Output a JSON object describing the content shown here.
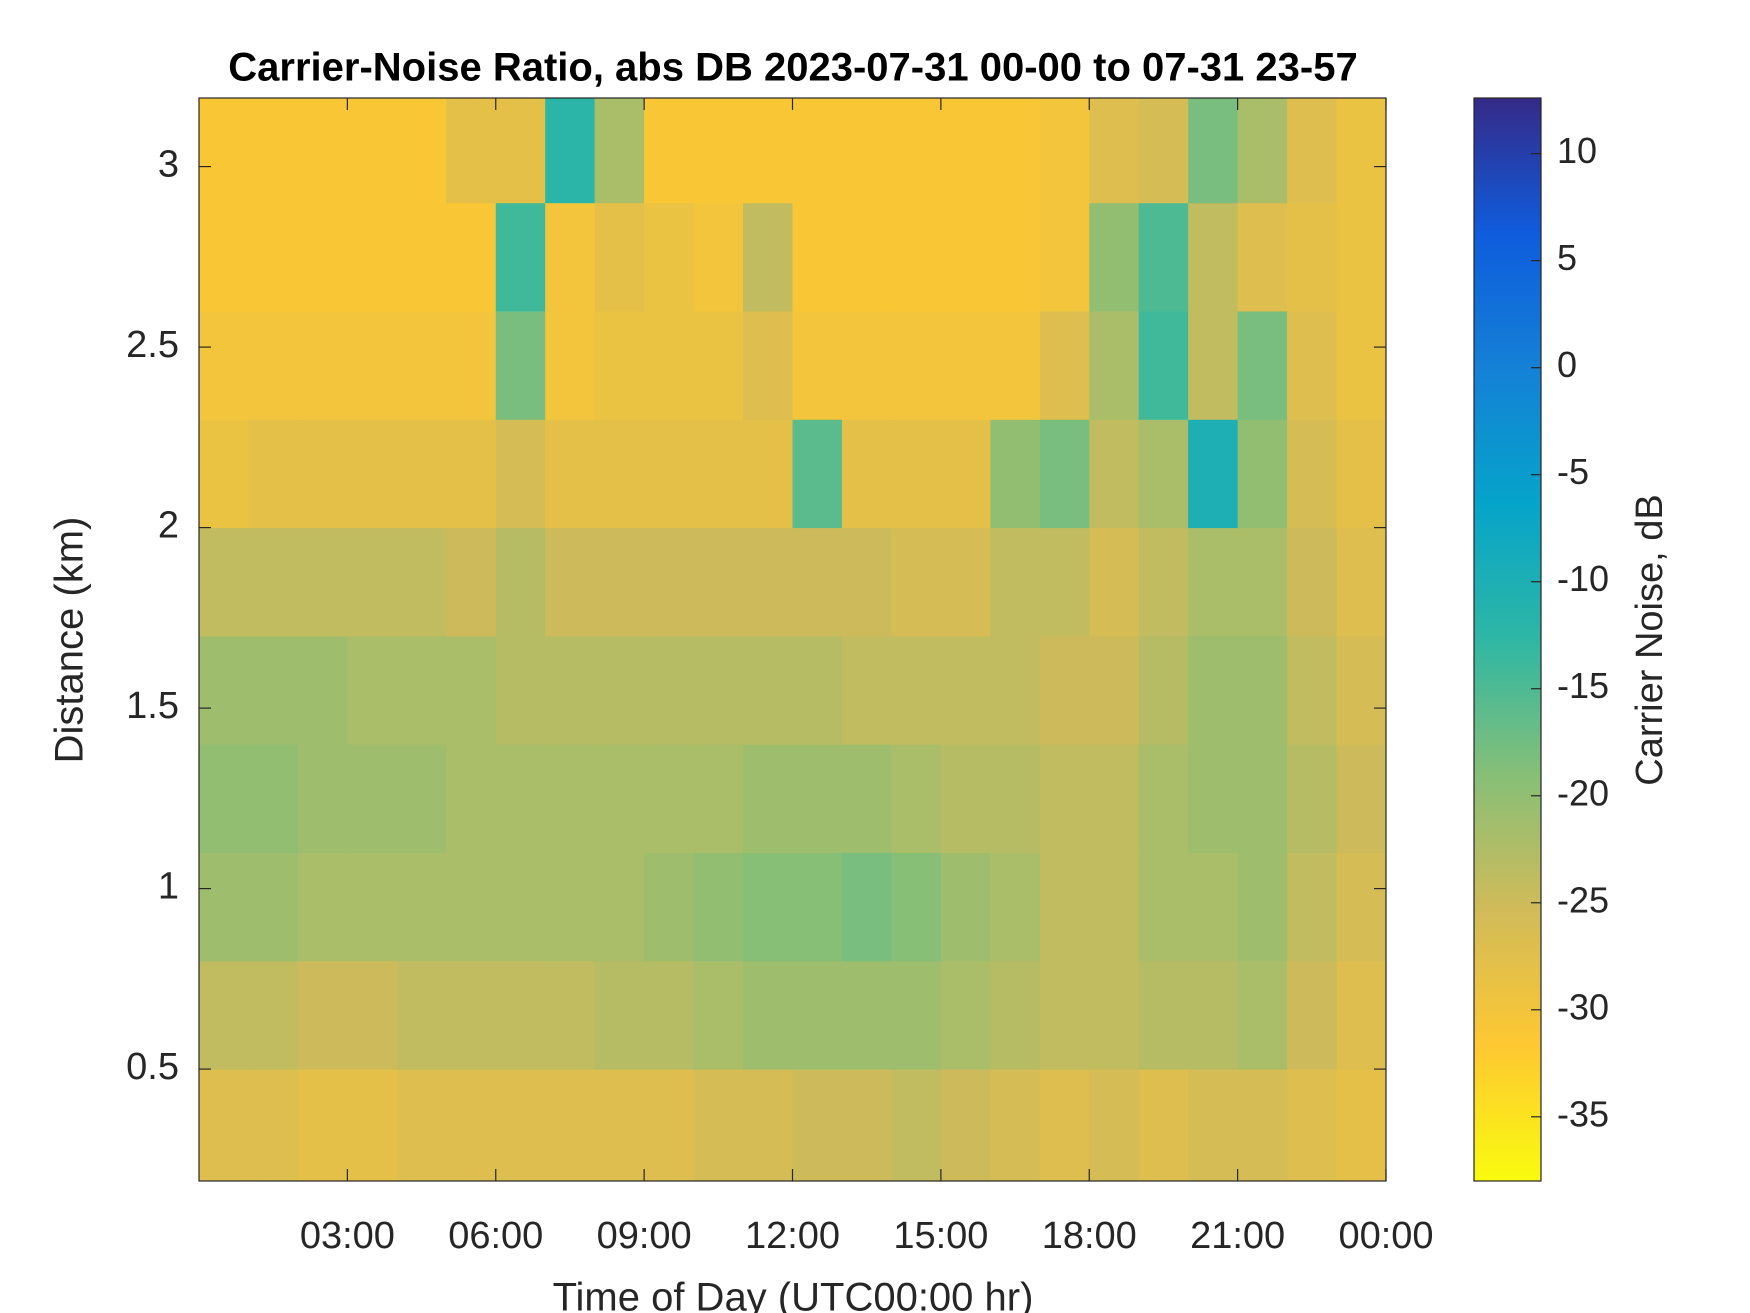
{
  "chart_data": {
    "type": "heatmap",
    "title": "Carrier-Noise Ratio, abs DB 2023-07-31 00-00 to 07-31 23-57",
    "x_label": "Time of Day (UTC00:00 hr)",
    "y_label": "Distance (km)",
    "colorbar_label": "Carrier Noise, dB",
    "xlim": [
      0,
      24
    ],
    "ylim": [
      0.19,
      3.19
    ],
    "xticks": [
      {
        "value": 3,
        "label": "03:00"
      },
      {
        "value": 6,
        "label": "06:00"
      },
      {
        "value": 9,
        "label": "09:00"
      },
      {
        "value": 12,
        "label": "12:00"
      },
      {
        "value": 15,
        "label": "15:00"
      },
      {
        "value": 18,
        "label": "18:00"
      },
      {
        "value": 21,
        "label": "21:00"
      },
      {
        "value": 24,
        "label": "00:00"
      }
    ],
    "yticks": [
      0.5,
      1,
      1.5,
      2,
      2.5,
      3
    ],
    "clim": [
      -38,
      12.6
    ],
    "cticks": [
      -35,
      -30,
      -25,
      -20,
      -15,
      -10,
      -5,
      0,
      5,
      10
    ],
    "colormap": [
      "#f9fb0e",
      "#fec832",
      "#d1bb59",
      "#87bf77",
      "#2eb7a4",
      "#06a4ca",
      "#1481d6",
      "#0f5cdd",
      "#352a87"
    ],
    "x_bins": [
      0,
      1,
      2,
      3,
      4,
      5,
      6,
      7,
      8,
      9,
      10,
      11,
      12,
      13,
      14,
      15,
      16,
      17,
      18,
      19,
      20,
      21,
      22,
      23,
      24
    ],
    "y_bins": [
      0.19,
      0.5,
      0.8,
      1.1,
      1.4,
      1.7,
      2.0,
      2.3,
      2.6,
      2.9,
      3.19
    ],
    "values": [
      [
        -27,
        -27,
        -28,
        -28,
        -27,
        -27,
        -27,
        -27,
        -27,
        -27,
        -26,
        -26,
        -25,
        -25,
        -24,
        -25,
        -26,
        -27,
        -26,
        -27,
        -26,
        -26,
        -27,
        -28
      ],
      [
        -24,
        -24,
        -25,
        -25,
        -24,
        -24,
        -24,
        -24,
        -23,
        -23,
        -22,
        -21,
        -21,
        -21,
        -21,
        -22,
        -23,
        -24,
        -24,
        -23,
        -23,
        -22,
        -25,
        -27
      ],
      [
        -21,
        -21,
        -22,
        -22,
        -22,
        -22,
        -22,
        -22,
        -22,
        -21,
        -20,
        -19,
        -19,
        -18,
        -19,
        -21,
        -22,
        -24,
        -24,
        -22,
        -22,
        -21,
        -24,
        -26
      ],
      [
        -20,
        -20,
        -21,
        -21,
        -21,
        -22,
        -22,
        -22,
        -22,
        -22,
        -22,
        -21,
        -21,
        -21,
        -22,
        -23,
        -23,
        -24,
        -24,
        -22,
        -21,
        -21,
        -23,
        -25
      ],
      [
        -21,
        -21,
        -21,
        -22,
        -22,
        -22,
        -23,
        -23,
        -23,
        -23,
        -23,
        -23,
        -23,
        -24,
        -24,
        -24,
        -24,
        -25,
        -25,
        -23,
        -21,
        -21,
        -24,
        -26
      ],
      [
        -24,
        -24,
        -24,
        -24,
        -24,
        -25,
        -23,
        -25,
        -25,
        -25,
        -25,
        -25,
        -25,
        -25,
        -26,
        -26,
        -24,
        -24,
        -26,
        -24,
        -22,
        -22,
        -25,
        -27
      ],
      [
        -29,
        -28,
        -28,
        -28,
        -28,
        -28,
        -26,
        -28,
        -28,
        -28,
        -28,
        -28,
        -16,
        -28,
        -28,
        -28,
        -20,
        -18,
        -24,
        -22,
        -10,
        -20,
        -26,
        -28
      ],
      [
        -30,
        -30,
        -30,
        -30,
        -30,
        -30,
        -18,
        -30,
        -29,
        -29,
        -29,
        -27,
        -30,
        -30,
        -30,
        -30,
        -30,
        -27,
        -22,
        -14,
        -24,
        -18,
        -27,
        -29
      ],
      [
        -31,
        -31,
        -31,
        -31,
        -31,
        -31,
        -14,
        -30,
        -28,
        -29,
        -30,
        -24,
        -31,
        -31,
        -31,
        -31,
        -31,
        -30,
        -20,
        -15,
        -24,
        -27,
        -28,
        -29
      ],
      [
        -31,
        -31,
        -31,
        -31,
        -31,
        -28,
        -28,
        -12,
        -22,
        -31,
        -31,
        -31,
        -31,
        -31,
        -31,
        -31,
        -31,
        -30,
        -27,
        -26,
        -18,
        -22,
        -27,
        -29
      ]
    ]
  }
}
